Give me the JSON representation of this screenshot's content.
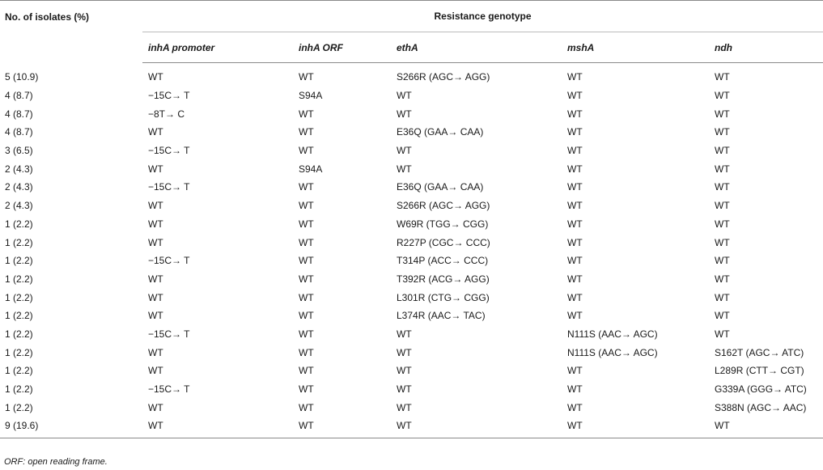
{
  "table": {
    "header_isolates": "No. of isolates (%)",
    "header_group": "Resistance genotype",
    "columns": [
      "inhA promoter",
      "inhA ORF",
      "ethA",
      "mshA",
      "ndh"
    ],
    "rows": [
      [
        "5 (10.9)",
        "WT",
        "WT",
        "S266R (AGC→ AGG)",
        "WT",
        "WT"
      ],
      [
        "4 (8.7)",
        "−15C→ T",
        "S94A",
        "WT",
        "WT",
        "WT"
      ],
      [
        "4 (8.7)",
        "−8T→ C",
        "WT",
        "WT",
        "WT",
        "WT"
      ],
      [
        "4 (8.7)",
        "WT",
        "WT",
        "E36Q (GAA→ CAA)",
        "WT",
        "WT"
      ],
      [
        "3 (6.5)",
        "−15C→ T",
        "WT",
        "WT",
        "WT",
        "WT"
      ],
      [
        "2 (4.3)",
        "WT",
        "S94A",
        "WT",
        "WT",
        "WT"
      ],
      [
        "2 (4.3)",
        "−15C→ T",
        "WT",
        "E36Q (GAA→ CAA)",
        "WT",
        "WT"
      ],
      [
        "2 (4.3)",
        "WT",
        "WT",
        "S266R (AGC→ AGG)",
        "WT",
        "WT"
      ],
      [
        "1 (2.2)",
        "WT",
        "WT",
        "W69R (TGG→ CGG)",
        "WT",
        "WT"
      ],
      [
        "1 (2.2)",
        "WT",
        "WT",
        "R227P (CGC→ CCC)",
        "WT",
        "WT"
      ],
      [
        "1 (2.2)",
        "−15C→ T",
        "WT",
        "T314P (ACC→ CCC)",
        "WT",
        "WT"
      ],
      [
        "1 (2.2)",
        "WT",
        "WT",
        "T392R (ACG→ AGG)",
        "WT",
        "WT"
      ],
      [
        "1 (2.2)",
        "WT",
        "WT",
        "L301R (CTG→ CGG)",
        "WT",
        "WT"
      ],
      [
        "1 (2.2)",
        "WT",
        "WT",
        "L374R (AAC→ TAC)",
        "WT",
        "WT"
      ],
      [
        "1 (2.2)",
        "−15C→ T",
        "WT",
        "WT",
        "N111S (AAC→ AGC)",
        "WT"
      ],
      [
        "1 (2.2)",
        "WT",
        "WT",
        "WT",
        "N111S (AAC→ AGC)",
        "S162T (AGC→ ATC)"
      ],
      [
        "1 (2.2)",
        "WT",
        "WT",
        "WT",
        "WT",
        "L289R (CTT→ CGT)"
      ],
      [
        "1 (2.2)",
        "−15C→ T",
        "WT",
        "WT",
        "WT",
        "G339A (GGG→ ATC)"
      ],
      [
        "1 (2.2)",
        "WT",
        "WT",
        "WT",
        "WT",
        "S388N (AGC→ AAC)"
      ],
      [
        "9 (19.6)",
        "WT",
        "WT",
        "WT",
        "WT",
        "WT"
      ]
    ]
  },
  "footnote": "ORF: open reading frame."
}
